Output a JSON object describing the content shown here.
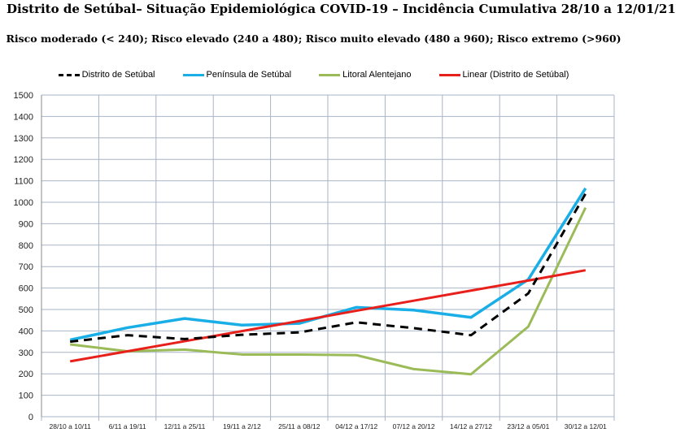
{
  "chart_data": {
    "type": "line",
    "title": "Distrito de Setúbal– Situação Epidemiológica COVID-19 – Incidência Cumulativa  28/10 a 12/01/21",
    "subtitle": "Risco moderado (< 240); Risco elevado (240 a 480); Risco muito elevado (480 a 960);  Risco extremo (>960)",
    "categories": [
      "28/10 a 10/11",
      "6/11 a 19/11",
      "12/11 a 25/11",
      "19/11 a 2/12",
      "25/11 a 08/12",
      "04/12 a 17/12",
      "07/12 a 20/12",
      "14/12 a 27/12",
      "23/12 a 05/01",
      "30/12  a 12/01"
    ],
    "ylim": [
      0,
      1500
    ],
    "yticks": [
      0,
      100,
      200,
      300,
      400,
      500,
      600,
      700,
      800,
      900,
      1000,
      1100,
      1200,
      1300,
      1400,
      1500
    ],
    "grid": true,
    "legend": "top",
    "series": [
      {
        "name": "Distrito de Setúbal",
        "color": "#000000",
        "dash": true,
        "values": [
          350,
          380,
          362,
          382,
          393,
          440,
          413,
          380,
          575,
          1040
        ]
      },
      {
        "name": "Península de Setúbal",
        "color": "#1aaee6",
        "values": [
          358,
          415,
          458,
          427,
          435,
          510,
          497,
          463,
          640,
          1065
        ]
      },
      {
        "name": "Litoral Alentejano",
        "color": "#9bbb59",
        "values": [
          337,
          305,
          313,
          290,
          290,
          287,
          222,
          198,
          420,
          975
        ]
      },
      {
        "name": "Linear (Distrito de Setúbal)",
        "color": "#e8201c",
        "values": [
          258,
          305,
          352,
          399,
          446,
          494,
          541,
          588,
          635,
          683
        ]
      }
    ]
  }
}
